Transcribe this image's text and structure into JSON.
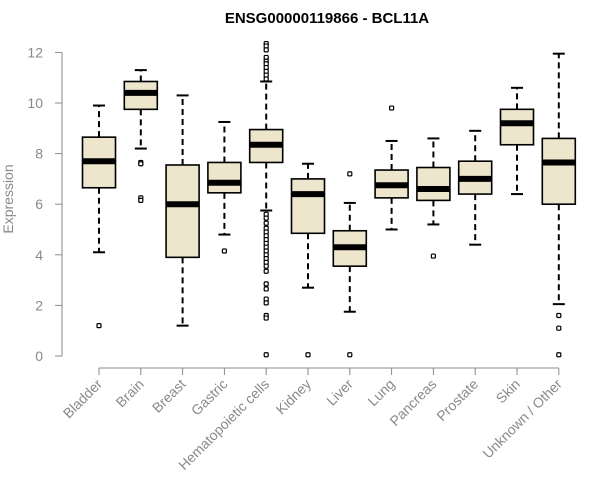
{
  "chart_data": {
    "type": "boxplot",
    "title": "ENSG00000119866 - BCL11A",
    "xlabel": "",
    "ylabel": "Expression",
    "ylim": [
      0,
      12
    ],
    "yticks": [
      0,
      2,
      4,
      6,
      8,
      10,
      12
    ],
    "box_color": "#ede6cc",
    "categories": [
      "Bladder",
      "Brain",
      "Breast",
      "Gastric",
      "Hematopoietic cells",
      "Kidney",
      "Liver",
      "Lung",
      "Pancreas",
      "Prostate",
      "Skin",
      "Unknown / Other"
    ],
    "boxes": [
      {
        "name": "Bladder",
        "whisker_low": 4.1,
        "q1": 6.65,
        "median": 7.7,
        "q3": 8.65,
        "whisker_high": 9.9,
        "outliers": [
          1.2
        ]
      },
      {
        "name": "Brain",
        "whisker_low": 8.2,
        "q1": 9.75,
        "median": 10.4,
        "q3": 10.85,
        "whisker_high": 11.3,
        "outliers": [
          7.65,
          7.6,
          6.25,
          6.15
        ]
      },
      {
        "name": "Breast",
        "whisker_low": 1.2,
        "q1": 3.9,
        "median": 6.0,
        "q3": 7.55,
        "whisker_high": 10.3,
        "outliers": []
      },
      {
        "name": "Gastric",
        "whisker_low": 4.8,
        "q1": 6.45,
        "median": 6.85,
        "q3": 7.65,
        "whisker_high": 9.25,
        "outliers": [
          4.15
        ]
      },
      {
        "name": "Hematopoietic cells",
        "whisker_low": 5.75,
        "q1": 7.65,
        "median": 8.35,
        "q3": 8.95,
        "whisker_high": 10.85,
        "outliers": [
          12.35,
          12.25,
          12.1,
          11.8,
          11.65,
          11.55,
          11.4,
          11.25,
          11.1,
          10.95,
          5.6,
          5.45,
          5.25,
          5.05,
          4.9,
          4.75,
          4.6,
          4.45,
          4.3,
          4.15,
          4.0,
          3.85,
          3.7,
          3.55,
          3.35,
          2.85,
          2.65,
          2.25,
          2.1,
          1.6,
          1.5,
          0.05
        ]
      },
      {
        "name": "Kidney",
        "whisker_low": 2.7,
        "q1": 4.85,
        "median": 6.4,
        "q3": 7.0,
        "whisker_high": 7.6,
        "outliers": [
          0.05
        ]
      },
      {
        "name": "Liver",
        "whisker_low": 1.75,
        "q1": 3.55,
        "median": 4.3,
        "q3": 4.95,
        "whisker_high": 6.05,
        "outliers": [
          7.2,
          0.05
        ]
      },
      {
        "name": "Lung",
        "whisker_low": 5.0,
        "q1": 6.25,
        "median": 6.75,
        "q3": 7.35,
        "whisker_high": 8.5,
        "outliers": [
          9.8
        ]
      },
      {
        "name": "Pancreas",
        "whisker_low": 5.2,
        "q1": 6.15,
        "median": 6.6,
        "q3": 7.45,
        "whisker_high": 8.6,
        "outliers": [
          3.95
        ]
      },
      {
        "name": "Prostate",
        "whisker_low": 4.4,
        "q1": 6.4,
        "median": 7.0,
        "q3": 7.7,
        "whisker_high": 8.9,
        "outliers": []
      },
      {
        "name": "Skin",
        "whisker_low": 6.4,
        "q1": 8.35,
        "median": 9.2,
        "q3": 9.75,
        "whisker_high": 10.6,
        "outliers": []
      },
      {
        "name": "Unknown / Other",
        "whisker_low": 2.05,
        "q1": 6.0,
        "median": 7.65,
        "q3": 8.6,
        "whisker_high": 11.95,
        "outliers": [
          1.6,
          1.1,
          0.05
        ]
      }
    ]
  }
}
